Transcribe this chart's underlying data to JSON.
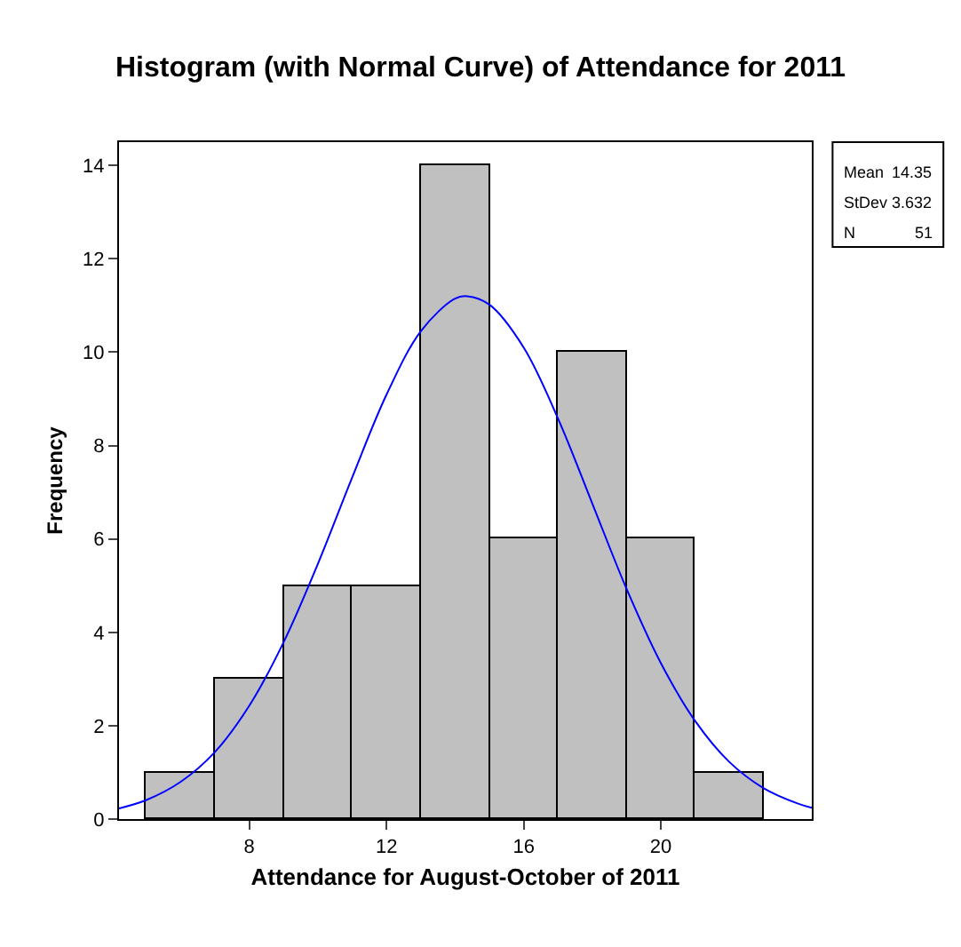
{
  "chart_data": {
    "type": "histogram",
    "title": "Histogram (with Normal Curve) of Attendance for 2011",
    "xlabel": "Attendance for August-October of 2011",
    "ylabel": "Frequency",
    "xlim": [
      4.2,
      24.4
    ],
    "xticks": [
      8,
      12,
      16,
      20
    ],
    "ylim": [
      0,
      14.5
    ],
    "yticks": [
      0,
      2,
      4,
      6,
      8,
      10,
      12,
      14
    ],
    "annotations": [
      "Mean 14.35",
      "StDev 3.632",
      "N 51"
    ],
    "series": [
      {
        "color": "#c0c0c0",
        "bins": [
          5,
          7,
          9,
          11,
          13,
          15,
          17,
          19,
          21,
          23
        ],
        "values": [
          1,
          3,
          5,
          5,
          14,
          6,
          10,
          6,
          1
        ]
      },
      {
        "type": "line",
        "color": "#0000ff",
        "x": [
          4.2,
          5,
          6,
          7,
          8,
          9,
          10,
          11,
          12,
          13,
          14,
          14.35,
          15,
          16,
          17,
          18,
          19,
          20,
          21,
          22,
          23,
          24,
          24.4
        ],
        "values": [
          0.23,
          0.41,
          0.8,
          1.44,
          2.43,
          3.79,
          5.47,
          7.32,
          9.09,
          10.45,
          11.15,
          11.2,
          11.02,
          10.1,
          8.58,
          6.76,
          4.93,
          3.34,
          2.1,
          1.22,
          0.66,
          0.33,
          0.24
        ]
      }
    ]
  }
}
